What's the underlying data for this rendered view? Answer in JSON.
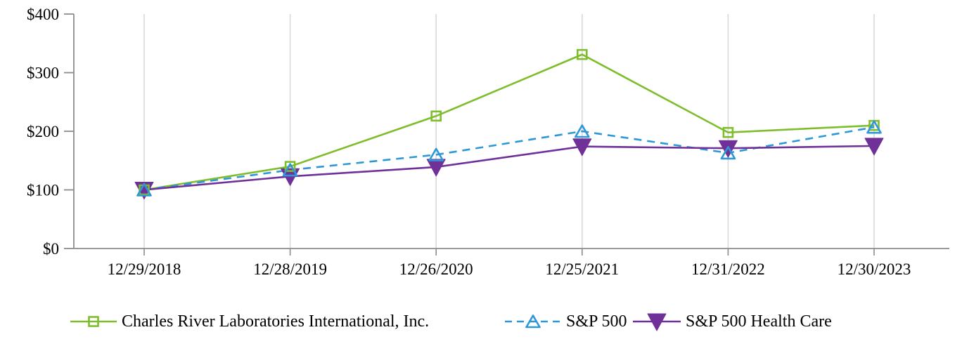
{
  "chart_data": {
    "type": "line",
    "title": "",
    "xlabel": "",
    "ylabel": "",
    "x_labels": [
      "12/29/2018",
      "12/28/2019",
      "12/26/2020",
      "12/25/2021",
      "12/31/2022",
      "12/30/2023"
    ],
    "y_tick_labels": [
      "$0",
      "$100",
      "$200",
      "$300",
      "$400"
    ],
    "y_tick_values": [
      0,
      100,
      200,
      300,
      400
    ],
    "ylim": [
      0,
      400
    ],
    "grid": "vertical-gridlines-only",
    "legend_position": "bottom",
    "series": [
      {
        "name": "Charles River Laboratories International, Inc.",
        "color": "#7ebe2c",
        "line_style": "solid",
        "marker": "square-open",
        "values": [
          100,
          140,
          226,
          331,
          198,
          210
        ]
      },
      {
        "name": "S&P 500",
        "color": "#2e97d8",
        "line_style": "dashed",
        "marker": "triangle-up-open",
        "values": [
          100,
          134,
          160,
          200,
          163,
          207
        ]
      },
      {
        "name": "S&P 500 Health Care",
        "color": "#6f3198",
        "line_style": "solid",
        "marker": "triangle-down-filled",
        "values": [
          100,
          123,
          139,
          174,
          171,
          175
        ]
      }
    ]
  },
  "colors": {
    "background": "#ffffff",
    "axis": "#8c8c8c",
    "gridline": "#d9d9d9",
    "text": "#000000"
  }
}
